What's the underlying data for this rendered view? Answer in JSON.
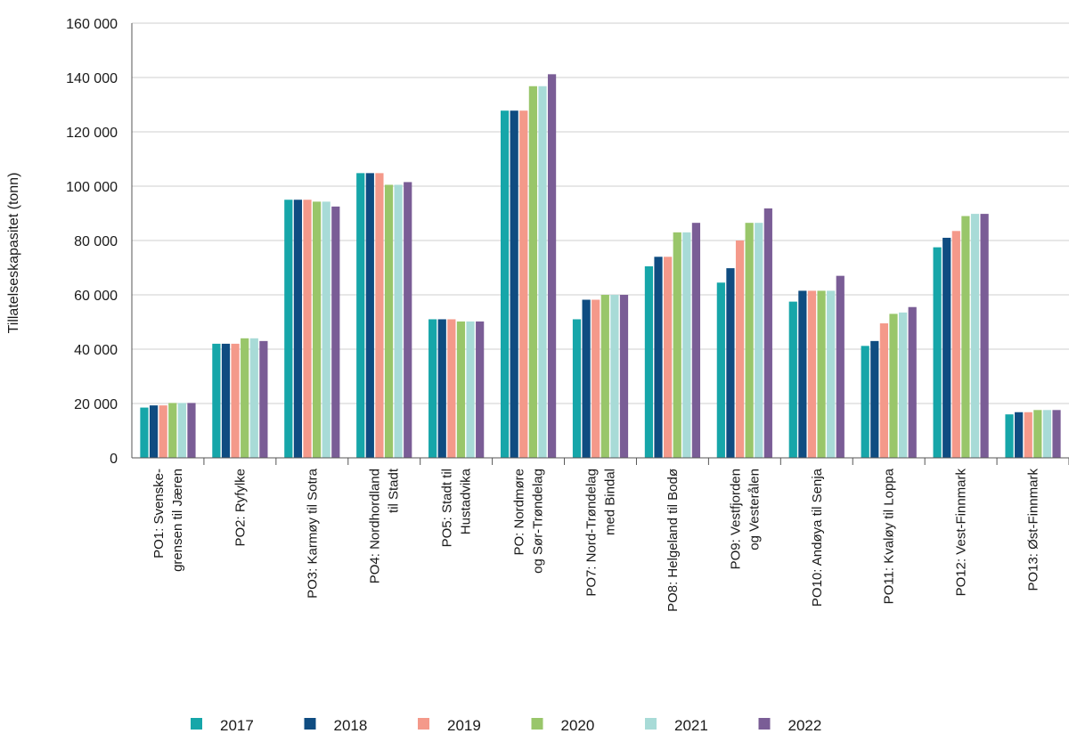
{
  "chart_data": {
    "type": "bar",
    "title": "",
    "xlabel": "",
    "ylabel": "Tillatelseskapasitet (tonn)",
    "ylim": [
      0,
      160000
    ],
    "yticks": [
      0,
      20000,
      40000,
      60000,
      80000,
      100000,
      120000,
      140000,
      160000
    ],
    "ytick_labels": [
      "0",
      "20 000",
      "40 000",
      "60 000",
      "80 000",
      "100 000",
      "120 000",
      "140 000",
      "160 000"
    ],
    "grid": "horizontal",
    "legend_position": "bottom",
    "categories": [
      [
        "PO1: Svenske-",
        "grensen til Jæren"
      ],
      [
        "PO2: Ryfylke"
      ],
      [
        "PO3: Karmøy til Sotra"
      ],
      [
        "PO4: Nordhordland",
        "til Stadt"
      ],
      [
        "PO5: Stadt til",
        "Hustadvika"
      ],
      [
        "PO: Nordmøre",
        "og Sør-Trøndelag"
      ],
      [
        "PO7: Nord-Trøndelag",
        "med Bindal"
      ],
      [
        "PO8: Helgeland til Bodø"
      ],
      [
        "PO9: Vestfjorden",
        "og Vesterålen"
      ],
      [
        "PO10: Andøya til Senja"
      ],
      [
        "PO11: Kvaløy til Loppa"
      ],
      [
        "PO12: Vest-Finnmark"
      ],
      [
        "PO13: Øst-Finnmark"
      ]
    ],
    "series": [
      {
        "name": "2017",
        "color": "#16a6a9",
        "values": [
          18500,
          42000,
          95000,
          104800,
          51000,
          127800,
          51000,
          70500,
          64500,
          57500,
          41200,
          77500,
          16000
        ]
      },
      {
        "name": "2018",
        "color": "#0f4c81",
        "values": [
          19300,
          42000,
          95000,
          104800,
          51000,
          127800,
          58200,
          74000,
          69800,
          61500,
          43000,
          81000,
          16800
        ]
      },
      {
        "name": "2019",
        "color": "#f4998a",
        "values": [
          19300,
          42000,
          95000,
          104800,
          51000,
          127800,
          58200,
          74000,
          80000,
          61500,
          49500,
          83500,
          16800
        ]
      },
      {
        "name": "2020",
        "color": "#99c66a",
        "values": [
          20200,
          44000,
          94300,
          100500,
          50200,
          136800,
          60000,
          83000,
          86500,
          61500,
          53000,
          89000,
          17600
        ]
      },
      {
        "name": "2021",
        "color": "#a8dbd7",
        "values": [
          20200,
          44000,
          94300,
          100500,
          50200,
          136800,
          60000,
          83000,
          86500,
          61500,
          53500,
          89800,
          17600
        ]
      },
      {
        "name": "2022",
        "color": "#7a5d96",
        "values": [
          20200,
          43000,
          92500,
          101500,
          50200,
          141200,
          60000,
          86500,
          91800,
          67000,
          55500,
          89800,
          17600
        ]
      }
    ]
  }
}
